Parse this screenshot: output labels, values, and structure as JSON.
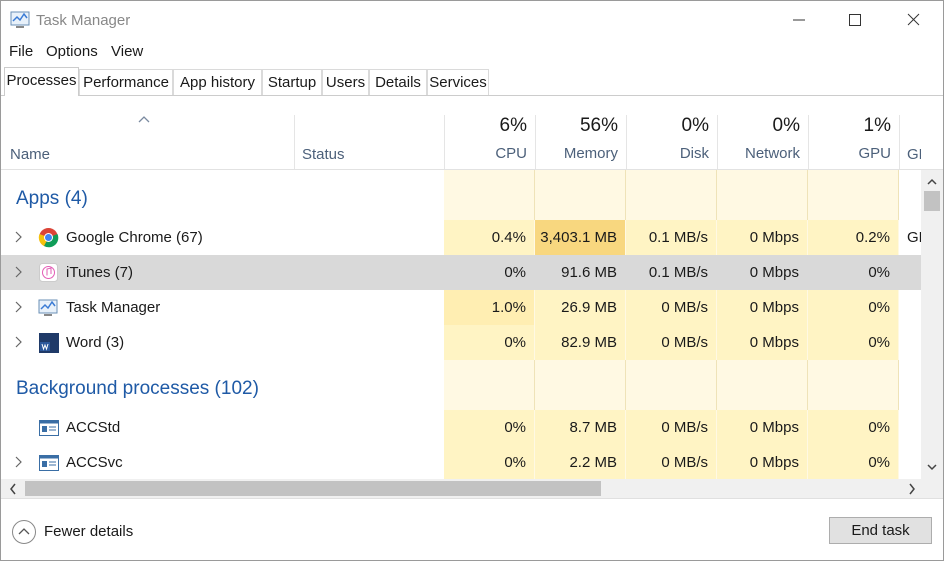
{
  "window": {
    "title": "Task Manager"
  },
  "menu": [
    "File",
    "Options",
    "View"
  ],
  "tabs": [
    "Processes",
    "Performance",
    "App history",
    "Startup",
    "Users",
    "Details",
    "Services"
  ],
  "columns": [
    {
      "label": "Name"
    },
    {
      "label": "Status"
    },
    {
      "percent": "6%",
      "label": "CPU"
    },
    {
      "percent": "56%",
      "label": "Memory"
    },
    {
      "percent": "0%",
      "label": "Disk"
    },
    {
      "percent": "0%",
      "label": "Network"
    },
    {
      "percent": "1%",
      "label": "GPU"
    },
    {
      "label": "GPU e"
    }
  ],
  "groups": [
    {
      "title": "Apps (4)",
      "rows": [
        {
          "name": "Google Chrome (67)",
          "cpu": "0.4%",
          "memory": "3,403.1 MB",
          "disk": "0.1 MB/s",
          "network": "0 Mbps",
          "gpu": "0.2%",
          "gpu_engine": "GP"
        },
        {
          "name": "iTunes (7)",
          "cpu": "0%",
          "memory": "91.6 MB",
          "disk": "0.1 MB/s",
          "network": "0 Mbps",
          "gpu": "0%"
        },
        {
          "name": "Task Manager",
          "cpu": "1.0%",
          "memory": "26.9 MB",
          "disk": "0 MB/s",
          "network": "0 Mbps",
          "gpu": "0%"
        },
        {
          "name": "Word (3)",
          "cpu": "0%",
          "memory": "82.9 MB",
          "disk": "0 MB/s",
          "network": "0 Mbps",
          "gpu": "0%"
        }
      ]
    },
    {
      "title": "Background processes (102)",
      "rows": [
        {
          "name": "ACCStd",
          "cpu": "0%",
          "memory": "8.7 MB",
          "disk": "0 MB/s",
          "network": "0 Mbps",
          "gpu": "0%"
        },
        {
          "name": "ACCSvc",
          "cpu": "0%",
          "memory": "2.2 MB",
          "disk": "0 MB/s",
          "network": "0 Mbps",
          "gpu": "0%"
        }
      ]
    }
  ],
  "footer": {
    "fewer_details": "Fewer details",
    "end_task": "End task"
  }
}
